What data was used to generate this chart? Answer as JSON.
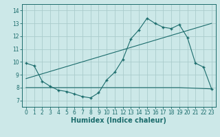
{
  "title": "",
  "xlabel": "Humidex (Indice chaleur)",
  "ylabel": "",
  "background_color": "#cce8e8",
  "grid_color": "#aacccc",
  "line_color": "#1a6b6b",
  "xlim": [
    -0.5,
    23.5
  ],
  "ylim": [
    6.5,
    14.5
  ],
  "yticks": [
    7,
    8,
    9,
    10,
    11,
    12,
    13,
    14
  ],
  "xticks": [
    0,
    1,
    2,
    3,
    4,
    5,
    6,
    7,
    8,
    9,
    10,
    11,
    12,
    13,
    14,
    15,
    16,
    17,
    18,
    19,
    20,
    21,
    22,
    23
  ],
  "line1_x": [
    0,
    1,
    2,
    3,
    4,
    5,
    6,
    7,
    8,
    9,
    10,
    11,
    12,
    13,
    14,
    15,
    16,
    17,
    18,
    19,
    20,
    21,
    22,
    23
  ],
  "line1_y": [
    9.9,
    9.7,
    8.5,
    8.1,
    7.8,
    7.7,
    7.5,
    7.3,
    7.2,
    7.6,
    8.6,
    9.2,
    10.2,
    11.8,
    12.5,
    13.4,
    13.0,
    12.7,
    12.6,
    12.9,
    11.9,
    9.9,
    9.6,
    7.9
  ],
  "line2_x": [
    0,
    23
  ],
  "line2_y": [
    8.7,
    13.0
  ],
  "line3_x": [
    0,
    19,
    23
  ],
  "line3_y": [
    8.0,
    8.0,
    7.9
  ],
  "marker_size": 2.5,
  "tick_fontsize": 5.5,
  "xlabel_fontsize": 7
}
